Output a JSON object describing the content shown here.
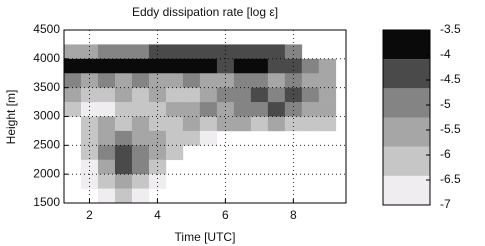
{
  "chart_data": {
    "type": "heatmap",
    "title": "Eddy dissipation rate [log ε]",
    "x_label": "Time [UTC]",
    "y_label": "Height [m]",
    "x": [
      1.5,
      2,
      2.5,
      3,
      3.5,
      4,
      4.5,
      5,
      5.5,
      6,
      6.5,
      7,
      7.5,
      8,
      8.5,
      9
    ],
    "y": [
      4375,
      4125,
      3875,
      3625,
      3375,
      3125,
      2875,
      2625,
      2375,
      2125,
      1875,
      1625
    ],
    "z": [
      [
        null,
        null,
        null,
        null,
        null,
        null,
        null,
        null,
        null,
        null,
        null,
        null,
        null,
        null,
        null,
        null
      ],
      [
        -5.5,
        -5.5,
        -5,
        -5,
        -5,
        -4.5,
        -4.5,
        -4.5,
        -4.5,
        -4.5,
        -4.5,
        -4.5,
        -4.5,
        -5,
        null,
        null
      ],
      [
        -4,
        -4,
        -4,
        -4,
        -4,
        -4,
        -4,
        -4,
        -4,
        -4.5,
        -4,
        -4,
        -4.5,
        -4.5,
        -5,
        -5.5
      ],
      [
        -5,
        -5.5,
        -5,
        -5.5,
        -5,
        -5.5,
        -5.5,
        -5,
        -5.5,
        -5.5,
        -5,
        -5,
        -5.5,
        -5,
        -5.5,
        -5.5
      ],
      [
        -5.5,
        -6,
        -6,
        -5.5,
        -6,
        -5.5,
        -6,
        -6,
        -5.5,
        -5,
        -5,
        -4.5,
        -5,
        -4.5,
        -5,
        -5.5
      ],
      [
        -6,
        -6.5,
        -6.5,
        -6,
        -6,
        -6,
        -5.5,
        -5.5,
        -5,
        -5.5,
        -5,
        -5,
        -4.5,
        -5,
        -5.5,
        -5.5
      ],
      [
        null,
        -6,
        -5.5,
        -6,
        -5.5,
        -6,
        -6,
        -5.5,
        -6,
        -5.5,
        -5.5,
        -6,
        -5.5,
        -6,
        -6,
        -6
      ],
      [
        null,
        -6,
        -5.5,
        -5,
        -5.5,
        -5.5,
        -6,
        -6,
        -6.5,
        null,
        null,
        null,
        null,
        null,
        null,
        null
      ],
      [
        null,
        -6,
        -5,
        -4.5,
        -5,
        -5.5,
        -6,
        null,
        null,
        null,
        null,
        null,
        null,
        null,
        null,
        null
      ],
      [
        null,
        -6.5,
        -5.5,
        -4.5,
        -5,
        -6,
        null,
        null,
        null,
        null,
        null,
        null,
        null,
        null,
        null,
        null
      ],
      [
        null,
        -6.5,
        -6,
        -5.5,
        -6,
        -6.5,
        null,
        null,
        null,
        null,
        null,
        null,
        null,
        null,
        null,
        null
      ],
      [
        null,
        null,
        -6.5,
        -6,
        -6.5,
        null,
        null,
        null,
        null,
        null,
        null,
        null,
        null,
        null,
        null,
        null
      ]
    ],
    "xlim": [
      1.25,
      9.55
    ],
    "xticks": [
      2,
      4,
      6,
      8
    ],
    "ylim": [
      1500,
      4500
    ],
    "yticks": [
      1500,
      2000,
      2500,
      3000,
      3500,
      4000,
      4500
    ],
    "grid": true,
    "colorbar": {
      "lim": [
        -7,
        -3.5
      ],
      "ticks": [
        -7,
        -6.5,
        -6,
        -5.5,
        -5,
        -4.5,
        -4,
        -3.5
      ],
      "colors": [
        "#efedef",
        "#c6c6c6",
        "#a6a6a6",
        "#848484",
        "#4a4a4a",
        "#0a0a0a"
      ]
    }
  }
}
